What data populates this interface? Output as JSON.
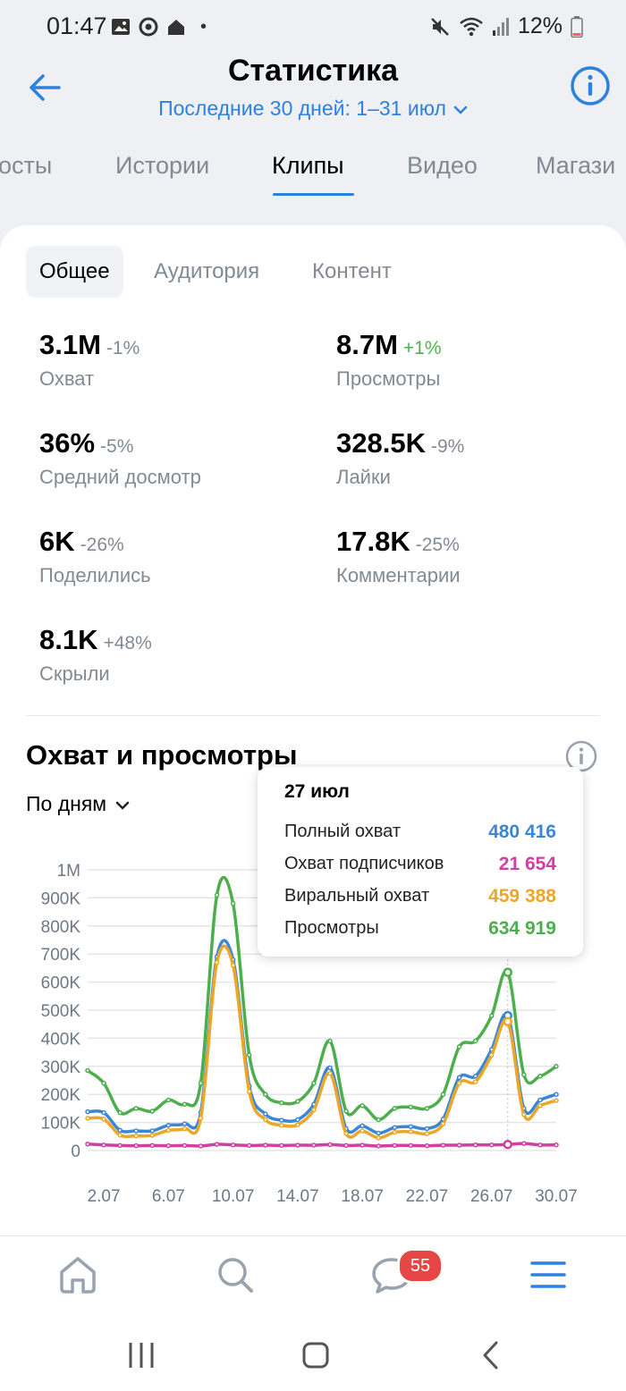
{
  "status_bar": {
    "time": "01:47",
    "dot": "•",
    "battery": "12%"
  },
  "header": {
    "title": "Статистика",
    "period": "Последние 30 дней: 1–31 июл"
  },
  "main_tabs": [
    {
      "label": "осты"
    },
    {
      "label": "Истории"
    },
    {
      "label": "Клипы",
      "active": true
    },
    {
      "label": "Видео"
    },
    {
      "label": "Магази"
    }
  ],
  "sub_tabs": [
    {
      "label": "Общее",
      "active": true
    },
    {
      "label": "Аудитория"
    },
    {
      "label": "Контент"
    }
  ],
  "metrics": [
    {
      "value": "3.1M",
      "change": "-1%",
      "label": "Охват"
    },
    {
      "value": "8.7M",
      "change": "+1%",
      "label": "Просмотры",
      "positive": true
    },
    {
      "value": "36%",
      "change": "-5%",
      "label": "Средний досмотр"
    },
    {
      "value": "328.5K",
      "change": "-9%",
      "label": "Лайки"
    },
    {
      "value": "6K",
      "change": "-26%",
      "label": "Поделились"
    },
    {
      "value": "17.8K",
      "change": "-25%",
      "label": "Комментарии"
    },
    {
      "value": "8.1K",
      "change": "+48%",
      "label": "Скрыли"
    }
  ],
  "section": {
    "title": "Охват и просмотры",
    "granularity": "По дням"
  },
  "tooltip": {
    "date": "27 июл",
    "rows": [
      {
        "label": "Полный охват",
        "value": "480 416",
        "color": "#3a87d6"
      },
      {
        "label": "Охват подписчиков",
        "value": "21 654",
        "color": "#d23fa3"
      },
      {
        "label": "Виральный охват",
        "value": "459 388",
        "color": "#eca728"
      },
      {
        "label": "Просмотры",
        "value": "634 919",
        "color": "#4cae4c"
      }
    ]
  },
  "chart_data": {
    "type": "line",
    "x": [
      "1.07",
      "2.07",
      "3.07",
      "4.07",
      "5.07",
      "6.07",
      "7.07",
      "8.07",
      "9.07",
      "10.07",
      "11.07",
      "12.07",
      "13.07",
      "14.07",
      "15.07",
      "16.07",
      "17.07",
      "18.07",
      "19.07",
      "20.07",
      "21.07",
      "22.07",
      "23.07",
      "24.07",
      "25.07",
      "26.07",
      "27.07",
      "28.07",
      "29.07",
      "30.07"
    ],
    "x_tick_labels": [
      "2.07",
      "6.07",
      "10.07",
      "14.07",
      "18.07",
      "22.07",
      "26.07",
      "30.07"
    ],
    "y_tick_labels": [
      "0",
      "100K",
      "200K",
      "300K",
      "400K",
      "500K",
      "600K",
      "700K",
      "800K",
      "900K",
      "1M"
    ],
    "ylim": [
      0,
      1000000
    ],
    "series": [
      {
        "name": "Просмотры",
        "color": "#4cae4c",
        "values": [
          285000,
          240000,
          135000,
          150000,
          140000,
          180000,
          165000,
          240000,
          910000,
          880000,
          340000,
          200000,
          170000,
          175000,
          240000,
          390000,
          140000,
          160000,
          110000,
          150000,
          155000,
          150000,
          200000,
          370000,
          390000,
          480000,
          634919,
          270000,
          265000,
          300000
        ]
      },
      {
        "name": "Полный охват",
        "color": "#3a87d6",
        "values": [
          138000,
          135000,
          72000,
          70000,
          70000,
          90000,
          95000,
          135000,
          690000,
          680000,
          230000,
          130000,
          108000,
          110000,
          165000,
          295000,
          78000,
          88000,
          62000,
          82000,
          85000,
          78000,
          112000,
          260000,
          265000,
          360000,
          480416,
          150000,
          180000,
          200000
        ]
      },
      {
        "name": "Виральный охват",
        "color": "#eca728",
        "values": [
          115000,
          112000,
          55000,
          52000,
          54000,
          72000,
          78000,
          115000,
          670000,
          660000,
          210000,
          110000,
          90000,
          92000,
          145000,
          275000,
          60000,
          70000,
          45000,
          65000,
          67000,
          60000,
          95000,
          240000,
          245000,
          340000,
          459388,
          128000,
          160000,
          178000
        ]
      },
      {
        "name": "Охват подписчиков",
        "color": "#d23fa3",
        "values": [
          23000,
          20000,
          18000,
          17000,
          18000,
          17000,
          18000,
          16000,
          22000,
          20000,
          18000,
          19000,
          18000,
          19000,
          19000,
          21000,
          18000,
          19000,
          16000,
          18000,
          18000,
          17000,
          19000,
          19000,
          20000,
          20000,
          21654,
          25000,
          20000,
          20000
        ]
      }
    ],
    "highlight_x": "27.07",
    "grid": true
  }
}
